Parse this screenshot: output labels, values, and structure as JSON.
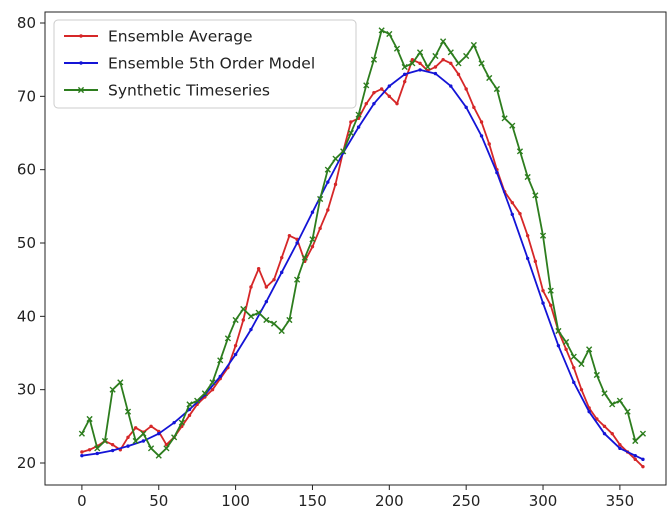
{
  "chart_data": {
    "type": "line",
    "title": "",
    "xlabel": "",
    "ylabel": "",
    "xlim": [
      -24,
      380
    ],
    "ylim": [
      17.0,
      81.5
    ],
    "xticks": [
      0,
      50,
      100,
      150,
      200,
      250,
      300,
      350
    ],
    "yticks": [
      20,
      30,
      40,
      50,
      60,
      70,
      80
    ],
    "grid": false,
    "legend_position": "upper left",
    "series": [
      {
        "name": "Ensemble Average",
        "color": "#d62728",
        "marker": "dot",
        "x": [
          0,
          5,
          10,
          15,
          20,
          25,
          30,
          35,
          40,
          45,
          50,
          55,
          60,
          65,
          70,
          75,
          80,
          85,
          90,
          95,
          100,
          105,
          110,
          115,
          120,
          125,
          130,
          135,
          140,
          145,
          150,
          155,
          160,
          165,
          170,
          175,
          180,
          185,
          190,
          195,
          200,
          205,
          210,
          215,
          220,
          225,
          230,
          235,
          240,
          245,
          250,
          255,
          260,
          265,
          270,
          275,
          280,
          285,
          290,
          295,
          300,
          305,
          310,
          315,
          320,
          325,
          330,
          335,
          340,
          345,
          350,
          355,
          360,
          365
        ],
        "values": [
          21.5,
          21.8,
          22.3,
          23.0,
          22.5,
          21.8,
          23.5,
          24.8,
          24.2,
          25.0,
          24.3,
          22.5,
          23.5,
          25.0,
          26.5,
          28.0,
          29.0,
          30.0,
          31.5,
          33.0,
          36.0,
          39.5,
          44.0,
          46.5,
          44.0,
          45.0,
          48.0,
          51.0,
          50.5,
          47.5,
          49.5,
          52.0,
          54.5,
          58.0,
          62.5,
          66.5,
          67.0,
          69.0,
          70.5,
          71.0,
          70.0,
          69.0,
          72.0,
          75.0,
          74.5,
          73.5,
          74.0,
          75.0,
          74.5,
          73.0,
          71.0,
          68.5,
          66.5,
          63.5,
          60.0,
          57.0,
          55.5,
          54.0,
          51.0,
          47.5,
          43.5,
          41.5,
          38.0,
          35.5,
          33.0,
          30.0,
          27.5,
          26.0,
          25.0,
          24.0,
          22.5,
          21.5,
          20.5,
          19.5
        ]
      },
      {
        "name": "Ensemble 5th Order Model",
        "color": "#1414d6",
        "marker": "dot",
        "x": [
          0,
          10,
          20,
          30,
          40,
          50,
          60,
          70,
          80,
          90,
          100,
          110,
          120,
          130,
          140,
          150,
          160,
          170,
          180,
          190,
          200,
          210,
          220,
          230,
          240,
          250,
          260,
          270,
          280,
          290,
          300,
          310,
          320,
          330,
          340,
          350,
          360,
          365
        ],
        "values": [
          21.0,
          21.3,
          21.7,
          22.3,
          23.0,
          24.0,
          25.5,
          27.3,
          29.3,
          31.8,
          34.8,
          38.2,
          42.0,
          46.0,
          50.0,
          54.2,
          58.3,
          62.3,
          65.8,
          69.0,
          71.4,
          73.0,
          73.6,
          73.1,
          71.4,
          68.5,
          64.6,
          59.6,
          53.9,
          47.9,
          41.8,
          36.0,
          31.0,
          27.0,
          24.0,
          22.0,
          21.0,
          20.5
        ]
      },
      {
        "name": "Synthetic Timeseries",
        "color": "#2d7d1e",
        "marker": "x",
        "x": [
          0,
          5,
          10,
          15,
          20,
          25,
          30,
          35,
          40,
          45,
          50,
          55,
          60,
          65,
          70,
          75,
          80,
          85,
          90,
          95,
          100,
          105,
          110,
          115,
          120,
          125,
          130,
          135,
          140,
          145,
          150,
          155,
          160,
          165,
          170,
          175,
          180,
          185,
          190,
          195,
          200,
          205,
          210,
          215,
          220,
          225,
          230,
          235,
          240,
          245,
          250,
          255,
          260,
          265,
          270,
          275,
          280,
          285,
          290,
          295,
          300,
          305,
          310,
          315,
          320,
          325,
          330,
          335,
          340,
          345,
          350,
          355,
          360,
          365
        ],
        "values": [
          24.0,
          26.0,
          22.0,
          23.0,
          30.0,
          31.0,
          27.0,
          23.0,
          24.0,
          22.0,
          21.0,
          22.0,
          23.5,
          25.5,
          28.0,
          28.5,
          29.5,
          31.0,
          34.0,
          37.0,
          39.5,
          41.0,
          40.0,
          40.5,
          39.5,
          39.0,
          38.0,
          39.5,
          45.0,
          48.0,
          50.5,
          56.0,
          60.0,
          61.5,
          62.5,
          65.0,
          67.5,
          71.5,
          75.0,
          79.0,
          78.5,
          76.5,
          74.0,
          74.5,
          76.0,
          74.0,
          75.5,
          77.5,
          76.0,
          74.5,
          75.5,
          77.0,
          74.5,
          72.5,
          71.0,
          67.0,
          66.0,
          62.5,
          59.0,
          56.5,
          51.0,
          43.5,
          38.0,
          36.5,
          34.5,
          33.5,
          35.5,
          32.0,
          29.5,
          28.0,
          28.5,
          27.0,
          23.0,
          24.0
        ]
      }
    ]
  }
}
